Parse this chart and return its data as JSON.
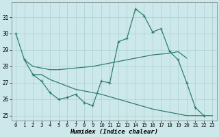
{
  "x_main": [
    0,
    1,
    2,
    3,
    4,
    5,
    6,
    7,
    8,
    9,
    10,
    11,
    12,
    13,
    14,
    15,
    16,
    17,
    18,
    19,
    20,
    21,
    22,
    23
  ],
  "y_main": [
    30.0,
    28.4,
    27.5,
    27.1,
    26.4,
    26.0,
    26.1,
    26.3,
    25.8,
    25.6,
    27.1,
    27.0,
    29.5,
    29.7,
    31.5,
    31.1,
    30.1,
    30.3,
    28.9,
    28.4,
    27.0,
    25.5,
    25.0,
    null
  ],
  "x_upper": [
    1,
    2,
    3,
    4,
    5,
    6,
    7,
    8,
    9,
    10,
    11,
    12,
    13,
    14,
    15,
    16,
    17,
    18,
    19,
    20
  ],
  "y_upper": [
    28.4,
    28.0,
    27.9,
    27.8,
    27.8,
    27.85,
    27.9,
    27.95,
    28.0,
    28.1,
    28.2,
    28.3,
    28.4,
    28.5,
    28.6,
    28.7,
    28.75,
    28.8,
    28.9,
    28.5
  ],
  "x_lower": [
    2,
    3,
    4,
    5,
    6,
    7,
    8,
    9,
    10,
    11,
    12,
    13,
    14,
    15,
    16,
    17,
    18,
    19,
    20,
    21,
    22,
    23
  ],
  "y_lower": [
    27.5,
    27.5,
    27.2,
    27.0,
    26.8,
    26.6,
    26.5,
    26.4,
    26.3,
    26.15,
    26.0,
    25.85,
    25.7,
    25.55,
    25.4,
    25.3,
    25.2,
    25.1,
    25.0,
    25.0,
    25.0,
    25.0
  ],
  "color": "#2d7d6e",
  "bg_color": "#cce8ea",
  "grid_color": "#aacfcf",
  "xlabel": "Humidex (Indice chaleur)",
  "ylim": [
    24.7,
    31.9
  ],
  "xlim": [
    -0.5,
    23.5
  ],
  "yticks": [
    25,
    26,
    27,
    28,
    29,
    30,
    31
  ],
  "xticks": [
    0,
    1,
    2,
    3,
    4,
    5,
    6,
    7,
    8,
    9,
    10,
    11,
    12,
    13,
    14,
    15,
    16,
    17,
    18,
    19,
    20,
    21,
    22,
    23
  ]
}
